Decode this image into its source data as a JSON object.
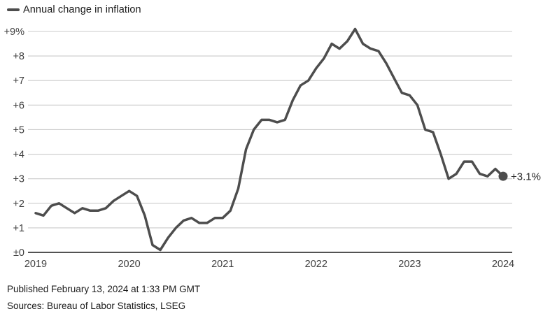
{
  "legend": {
    "label": "Annual change in inflation"
  },
  "footer": {
    "published": "Published February 13, 2024 at 1:33 PM GMT",
    "sources": "Sources: Bureau of Labor Statistics, LSEG"
  },
  "chart_data": {
    "type": "line",
    "series_name": "Annual change in inflation",
    "x_tick_labels": [
      "2019",
      "2020",
      "2021",
      "2022",
      "2023",
      "2024"
    ],
    "points_per_year": 12,
    "y_tick_labels": [
      "±0",
      "+1",
      "+2",
      "+3",
      "+4",
      "+5",
      "+6",
      "+7",
      "+8",
      "+9%"
    ],
    "ylim": [
      0,
      9
    ],
    "values": [
      1.6,
      1.5,
      1.9,
      2.0,
      1.8,
      1.6,
      1.8,
      1.7,
      1.7,
      1.8,
      2.1,
      2.3,
      2.5,
      2.3,
      1.5,
      0.3,
      0.1,
      0.6,
      1.0,
      1.3,
      1.4,
      1.2,
      1.2,
      1.4,
      1.4,
      1.7,
      2.6,
      4.2,
      5.0,
      5.4,
      5.4,
      5.3,
      5.4,
      6.2,
      6.8,
      7.0,
      7.5,
      7.9,
      8.5,
      8.3,
      8.6,
      9.1,
      8.5,
      8.3,
      8.2,
      7.7,
      7.1,
      6.5,
      6.4,
      6.0,
      5.0,
      4.9,
      4.0,
      3.0,
      3.2,
      3.7,
      3.7,
      3.2,
      3.1,
      3.4,
      3.1
    ],
    "end_value": 3.1,
    "end_label": "+3.1%",
    "grid": true,
    "legend_position": "top-left",
    "colors": {
      "line": "#4d4d4d",
      "grid": "#cbcbcb",
      "zero_axis": "#1a1a1a",
      "tick_text": "#404040",
      "end_label_text": "#2b2b2b"
    }
  }
}
